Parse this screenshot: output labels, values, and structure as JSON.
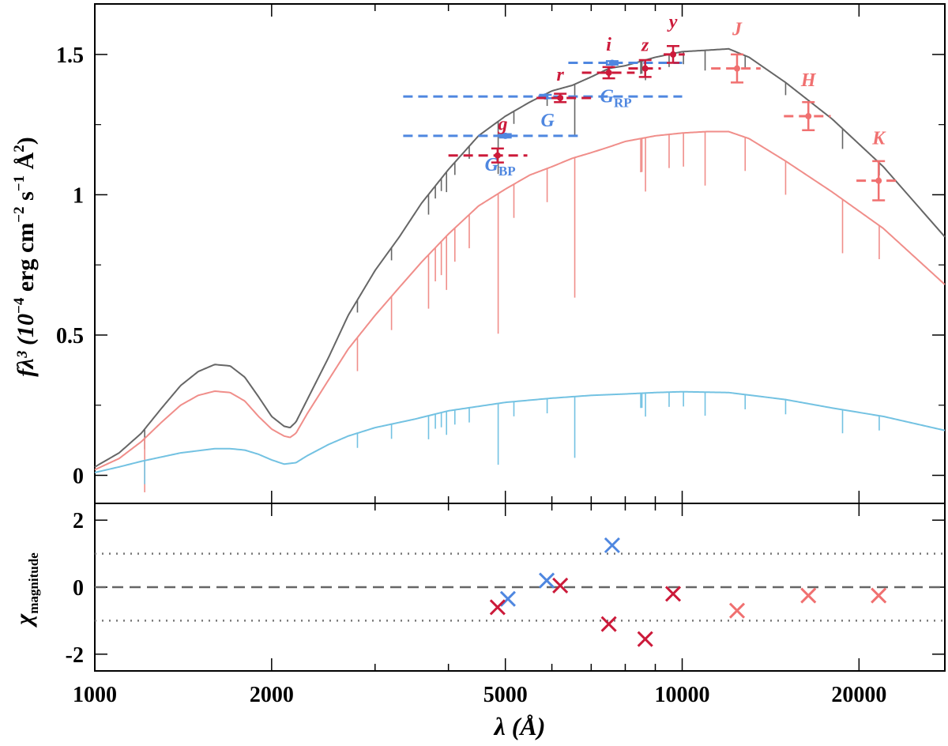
{
  "chart_data": [
    {
      "type": "line",
      "panel": "top",
      "xscale": "log",
      "xlim": [
        1000,
        28000
      ],
      "ylim": [
        -0.1,
        1.68
      ],
      "yticks": [
        0,
        0.5,
        1,
        1.5
      ],
      "ytick_labels": [
        "0",
        "0.5",
        "1",
        "1.5"
      ],
      "ylabel_parts": {
        "main": "fλ³ (10",
        "exp1": "−4",
        "mid": " erg cm",
        "exp2": "−2",
        "mid2": " s",
        "exp3": "−1",
        "mid3": " Å",
        "exp4": "2",
        "end": ")"
      },
      "series": [
        {
          "color": "#666666",
          "x": [
            1000,
            1100,
            1200,
            1300,
            1400,
            1500,
            1600,
            1700,
            1800,
            1900,
            2000,
            2100,
            2150,
            2200,
            2300,
            2500,
            2700,
            3000,
            3300,
            3600,
            4000,
            4500,
            5000,
            5500,
            6000,
            6500,
            7000,
            7500,
            8000,
            9000,
            10000,
            11000,
            12000,
            13000,
            15000,
            18000,
            22000,
            28000
          ],
          "y": [
            0.03,
            0.08,
            0.15,
            0.24,
            0.32,
            0.37,
            0.395,
            0.39,
            0.35,
            0.28,
            0.21,
            0.175,
            0.17,
            0.19,
            0.27,
            0.42,
            0.57,
            0.73,
            0.85,
            0.97,
            1.09,
            1.21,
            1.28,
            1.33,
            1.37,
            1.39,
            1.42,
            1.45,
            1.46,
            1.49,
            1.51,
            1.515,
            1.52,
            1.49,
            1.4,
            1.27,
            1.1,
            0.85
          ]
        },
        {
          "color": "#f08e8a",
          "x": [
            1000,
            1100,
            1200,
            1300,
            1400,
            1500,
            1600,
            1700,
            1800,
            1900,
            2000,
            2100,
            2150,
            2200,
            2300,
            2500,
            2700,
            3000,
            3300,
            3600,
            4000,
            4500,
            5000,
            5500,
            6000,
            6500,
            7000,
            7500,
            8000,
            9000,
            10000,
            11000,
            12000,
            13000,
            15000,
            18000,
            22000,
            28000
          ],
          "y": [
            0.02,
            0.06,
            0.12,
            0.19,
            0.25,
            0.285,
            0.3,
            0.295,
            0.265,
            0.21,
            0.165,
            0.14,
            0.135,
            0.15,
            0.22,
            0.34,
            0.45,
            0.57,
            0.67,
            0.76,
            0.86,
            0.96,
            1.02,
            1.07,
            1.1,
            1.13,
            1.15,
            1.17,
            1.19,
            1.21,
            1.22,
            1.225,
            1.225,
            1.2,
            1.12,
            1.01,
            0.88,
            0.68
          ]
        },
        {
          "color": "#73c2e2",
          "x": [
            1000,
            1100,
            1200,
            1400,
            1600,
            1700,
            1800,
            1900,
            2000,
            2100,
            2200,
            2300,
            2500,
            2700,
            3000,
            3500,
            4000,
            5000,
            6000,
            7000,
            8000,
            9000,
            10000,
            12000,
            15000,
            18000,
            22000,
            28000
          ],
          "y": [
            0.01,
            0.03,
            0.05,
            0.08,
            0.095,
            0.095,
            0.09,
            0.075,
            0.055,
            0.04,
            0.045,
            0.07,
            0.11,
            0.14,
            0.17,
            0.2,
            0.23,
            0.26,
            0.275,
            0.285,
            0.29,
            0.295,
            0.298,
            0.295,
            0.27,
            0.24,
            0.21,
            0.16
          ]
        }
      ],
      "photometry": [
        {
          "label": "G",
          "sub": "BP",
          "color": "#4f87e0",
          "x": 5000,
          "xlo": 3350,
          "xhi": 6650,
          "y": 1.21,
          "yerr": 0.006
        },
        {
          "label": "G",
          "sub": "",
          "color": "#4f87e0",
          "x": 5850,
          "xlo": 3350,
          "xhi": 10000,
          "y": 1.35,
          "yerr": 0.006
        },
        {
          "label": "G",
          "sub": "RP",
          "color": "#4f87e0",
          "x": 7600,
          "xlo": 6400,
          "xhi": 10000,
          "y": 1.47,
          "yerr": 0.006
        },
        {
          "label": "g",
          "sub": "",
          "color": "#cc1a3a",
          "x": 4850,
          "xlo": 4000,
          "xhi": 5450,
          "y": 1.14,
          "yerr": 0.025
        },
        {
          "label": "r",
          "sub": "",
          "color": "#cc1a3a",
          "x": 6200,
          "xlo": 5650,
          "xhi": 7000,
          "y": 1.345,
          "yerr": 0.015
        },
        {
          "label": "i",
          "sub": "",
          "color": "#cc1a3a",
          "x": 7500,
          "xlo": 6750,
          "xhi": 8300,
          "y": 1.435,
          "yerr": 0.02
        },
        {
          "label": "z",
          "sub": "",
          "color": "#cc1a3a",
          "x": 8650,
          "xlo": 8100,
          "xhi": 9200,
          "y": 1.45,
          "yerr": 0.03
        },
        {
          "label": "y",
          "sub": "",
          "color": "#cc1a3a",
          "x": 9650,
          "xlo": 9300,
          "xhi": 10100,
          "y": 1.5,
          "yerr": 0.03
        },
        {
          "label": "J",
          "sub": "",
          "color": "#f07070",
          "x": 12400,
          "xlo": 11200,
          "xhi": 13600,
          "y": 1.45,
          "yerr": 0.05
        },
        {
          "label": "H",
          "sub": "",
          "color": "#f07070",
          "x": 16400,
          "xlo": 14900,
          "xhi": 17900,
          "y": 1.28,
          "yerr": 0.05
        },
        {
          "label": "K",
          "sub": "",
          "color": "#f07070",
          "x": 21600,
          "xlo": 19800,
          "xhi": 23500,
          "y": 1.05,
          "yerr": 0.07
        }
      ]
    },
    {
      "type": "scatter",
      "panel": "bottom",
      "xscale": "log",
      "xlim": [
        1000,
        28000
      ],
      "ylim": [
        -2.5,
        2.5
      ],
      "yticks": [
        -2,
        0,
        2
      ],
      "ytick_labels": [
        "-2",
        "0",
        "2"
      ],
      "hlines": [
        {
          "y": 0,
          "style": "dashed"
        },
        {
          "y": 1,
          "style": "dotted"
        },
        {
          "y": -1,
          "style": "dotted"
        }
      ],
      "ylabel_main": "χ",
      "ylabel_sub": "magnitude",
      "xticks": [
        1000,
        2000,
        5000,
        10000,
        20000
      ],
      "xtick_labels": [
        "1000",
        "2000",
        "5000",
        "10000",
        "20000"
      ],
      "xlabel": "λ (Å)",
      "points": [
        {
          "color": "#4f87e0",
          "x": 5050,
          "y": -0.35
        },
        {
          "color": "#4f87e0",
          "x": 5880,
          "y": 0.2
        },
        {
          "color": "#4f87e0",
          "x": 7600,
          "y": 1.25
        },
        {
          "color": "#cc1a3a",
          "x": 4850,
          "y": -0.6
        },
        {
          "color": "#cc1a3a",
          "x": 6200,
          "y": 0.05
        },
        {
          "color": "#cc1a3a",
          "x": 7500,
          "y": -1.1
        },
        {
          "color": "#cc1a3a",
          "x": 8650,
          "y": -1.55
        },
        {
          "color": "#cc1a3a",
          "x": 9650,
          "y": -0.2
        },
        {
          "color": "#f07070",
          "x": 12400,
          "y": -0.7
        },
        {
          "color": "#f07070",
          "x": 16400,
          "y": -0.25
        },
        {
          "color": "#f07070",
          "x": 21600,
          "y": -0.25
        }
      ]
    }
  ]
}
